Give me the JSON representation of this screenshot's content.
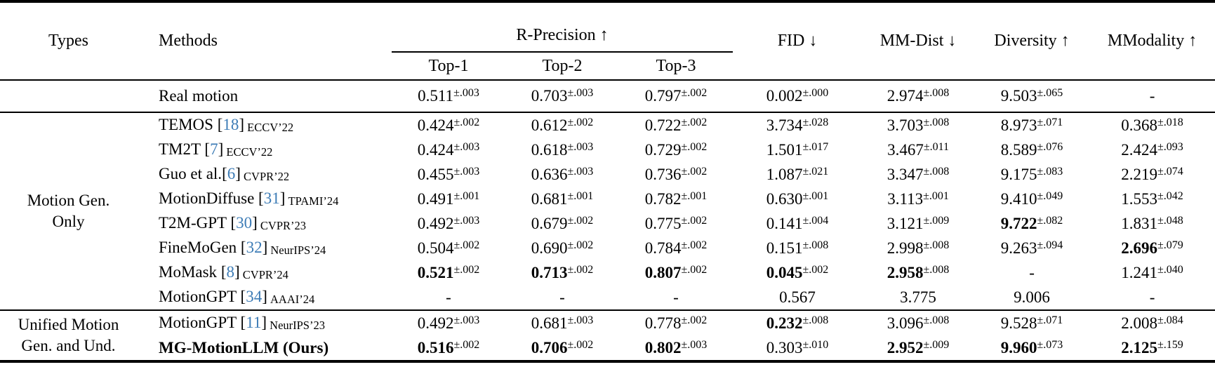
{
  "accent_color": "#3D7CB6",
  "header": {
    "types": "Types",
    "methods": "Methods",
    "r_precision": "R-Precision ↑",
    "top1": "Top-1",
    "top2": "Top-2",
    "top3": "Top-3",
    "fid": "FID ↓",
    "mm_dist": "MM-Dist ↓",
    "diversity": "Diversity ↑",
    "mmodality": "MModality ↑"
  },
  "chart_data": {
    "type": "table",
    "columns": [
      "Types",
      "Methods",
      "R-Precision Top-1",
      "R-Precision Top-2",
      "R-Precision Top-3",
      "FID",
      "MM-Dist",
      "Diversity",
      "MModality"
    ]
  },
  "groups": [
    {
      "type_label_lines": [],
      "rows": [
        {
          "method": "Real motion",
          "cells": [
            {
              "v": "0.511",
              "pm": "±.003"
            },
            {
              "v": "0.703",
              "pm": "±.003"
            },
            {
              "v": "0.797",
              "pm": "±.002"
            },
            {
              "v": "0.002",
              "pm": "±.000"
            },
            {
              "v": "2.974",
              "pm": "±.008"
            },
            {
              "v": "9.503",
              "pm": "±.065"
            },
            {
              "v": "-"
            }
          ]
        }
      ]
    },
    {
      "type_label_lines": [
        "Motion Gen.",
        "Only"
      ],
      "rows": [
        {
          "method": "TEMOS",
          "cite": "18",
          "venue": "ECCV’22",
          "cells": [
            {
              "v": "0.424",
              "pm": "±.002"
            },
            {
              "v": "0.612",
              "pm": "±.002"
            },
            {
              "v": "0.722",
              "pm": "±.002"
            },
            {
              "v": "3.734",
              "pm": "±.028"
            },
            {
              "v": "3.703",
              "pm": "±.008"
            },
            {
              "v": "8.973",
              "pm": "±.071"
            },
            {
              "v": "0.368",
              "pm": "±.018"
            }
          ]
        },
        {
          "method": "TM2T",
          "cite": "7",
          "venue": "ECCV’22",
          "cells": [
            {
              "v": "0.424",
              "pm": "±.003"
            },
            {
              "v": "0.618",
              "pm": "±.003"
            },
            {
              "v": "0.729",
              "pm": "±.002"
            },
            {
              "v": "1.501",
              "pm": "±.017"
            },
            {
              "v": "3.467",
              "pm": "±.011"
            },
            {
              "v": "8.589",
              "pm": "±.076"
            },
            {
              "v": "2.424",
              "pm": "±.093"
            }
          ]
        },
        {
          "method": "Guo et al.",
          "nospace": true,
          "cite": "6",
          "venue": "CVPR’22",
          "cells": [
            {
              "v": "0.455",
              "pm": "±.003"
            },
            {
              "v": "0.636",
              "pm": "±.003"
            },
            {
              "v": "0.736",
              "pm": "±.002"
            },
            {
              "v": "1.087",
              "pm": "±.021"
            },
            {
              "v": "3.347",
              "pm": "±.008"
            },
            {
              "v": "9.175",
              "pm": "±.083"
            },
            {
              "v": "2.219",
              "pm": "±.074"
            }
          ]
        },
        {
          "method": "MotionDiffuse",
          "cite": "31",
          "venue": "TPAMI’24",
          "cells": [
            {
              "v": "0.491",
              "pm": "±.001"
            },
            {
              "v": "0.681",
              "pm": "±.001"
            },
            {
              "v": "0.782",
              "pm": "±.001"
            },
            {
              "v": "0.630",
              "pm": "±.001"
            },
            {
              "v": "3.113",
              "pm": "±.001"
            },
            {
              "v": "9.410",
              "pm": "±.049"
            },
            {
              "v": "1.553",
              "pm": "±.042"
            }
          ]
        },
        {
          "method": "T2M-GPT",
          "cite": "30",
          "venue": "CVPR’23",
          "cells": [
            {
              "v": "0.492",
              "pm": "±.003"
            },
            {
              "v": "0.679",
              "pm": "±.002"
            },
            {
              "v": "0.775",
              "pm": "±.002"
            },
            {
              "v": "0.141",
              "pm": "±.004"
            },
            {
              "v": "3.121",
              "pm": "±.009"
            },
            {
              "v": "9.722",
              "pm": "±.082",
              "b": true
            },
            {
              "v": "1.831",
              "pm": "±.048"
            }
          ]
        },
        {
          "method": "FineMoGen",
          "cite": "32",
          "venue": "NeurIPS’24",
          "cells": [
            {
              "v": "0.504",
              "pm": "±.002"
            },
            {
              "v": "0.690",
              "pm": "±.002"
            },
            {
              "v": "0.784",
              "pm": "±.002"
            },
            {
              "v": "0.151",
              "pm": "±.008"
            },
            {
              "v": "2.998",
              "pm": "±.008"
            },
            {
              "v": "9.263",
              "pm": "±.094"
            },
            {
              "v": "2.696",
              "pm": "±.079",
              "b": true
            }
          ]
        },
        {
          "method": "MoMask",
          "cite": "8",
          "venue": "CVPR’24",
          "cells": [
            {
              "v": "0.521",
              "pm": "±.002",
              "b": true
            },
            {
              "v": "0.713",
              "pm": "±.002",
              "b": true
            },
            {
              "v": "0.807",
              "pm": "±.002",
              "b": true
            },
            {
              "v": "0.045",
              "pm": "±.002",
              "b": true
            },
            {
              "v": "2.958",
              "pm": "±.008",
              "b": true
            },
            {
              "v": "-"
            },
            {
              "v": "1.241",
              "pm": "±.040"
            }
          ]
        },
        {
          "method": "MotionGPT",
          "cite": "34",
          "venue": "AAAI’24",
          "cells": [
            {
              "v": "-"
            },
            {
              "v": "-"
            },
            {
              "v": "-"
            },
            {
              "v": "0.567"
            },
            {
              "v": "3.775"
            },
            {
              "v": "9.006"
            },
            {
              "v": "-"
            }
          ]
        }
      ]
    },
    {
      "type_label_lines": [
        "Unified Motion",
        "Gen. and Und."
      ],
      "rows": [
        {
          "method": "MotionGPT",
          "cite": "11",
          "venue": "NeurIPS’23",
          "cells": [
            {
              "v": "0.492",
              "pm": "±.003"
            },
            {
              "v": "0.681",
              "pm": "±.003"
            },
            {
              "v": "0.778",
              "pm": "±.002"
            },
            {
              "v": "0.232",
              "pm": "±.008",
              "b": true
            },
            {
              "v": "3.096",
              "pm": "±.008"
            },
            {
              "v": "9.528",
              "pm": "±.071"
            },
            {
              "v": "2.008",
              "pm": "±.084"
            }
          ]
        },
        {
          "method": "MG-MotionLLM (Ours)",
          "bold_method": true,
          "cells": [
            {
              "v": "0.516",
              "pm": "±.002",
              "b": true
            },
            {
              "v": "0.706",
              "pm": "±.002",
              "b": true
            },
            {
              "v": "0.802",
              "pm": "±.003",
              "b": true
            },
            {
              "v": "0.303",
              "pm": "±.010"
            },
            {
              "v": "2.952",
              "pm": "±.009",
              "b": true
            },
            {
              "v": "9.960",
              "pm": "±.073",
              "b": true
            },
            {
              "v": "2.125",
              "pm": "±.159",
              "b": true
            }
          ]
        }
      ]
    }
  ]
}
